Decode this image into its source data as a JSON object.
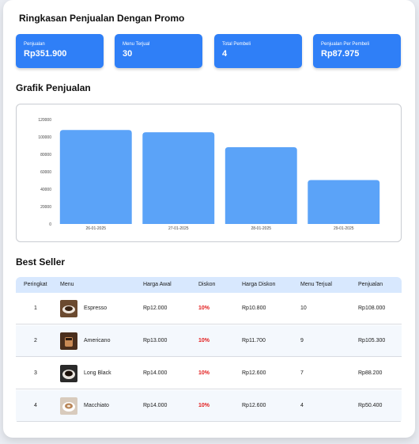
{
  "summary": {
    "title": "Ringkasan Penjualan Dengan Promo",
    "cards": [
      {
        "label": "Penjualan",
        "value": "Rp351.900"
      },
      {
        "label": "Menu Terjual",
        "value": "30"
      },
      {
        "label": "Total Pembeli",
        "value": "4"
      },
      {
        "label": "Penjualan Per Pembeli",
        "value": "Rp87.975"
      }
    ],
    "accent_color": "#2f7ff7"
  },
  "chart_section": {
    "title": "Grafik Penjualan"
  },
  "chart_data": {
    "type": "bar",
    "categories": [
      "26-01-2025",
      "27-01-2025",
      "28-01-2025",
      "29-01-2025"
    ],
    "values": [
      108000,
      105300,
      88200,
      50400
    ],
    "ylim": [
      0,
      120000
    ],
    "yticks": [
      "0",
      "20000",
      "40000",
      "60000",
      "80000",
      "100000",
      "120000"
    ],
    "bar_color": "#5ba3f8",
    "grid": false,
    "legend": "none"
  },
  "best_seller": {
    "title": "Best Seller",
    "columns": [
      "Peringkat",
      "Menu",
      "Harga Awal",
      "Diskon",
      "Harga Diskon",
      "Menu Terjual",
      "Penjualan"
    ],
    "rows": [
      {
        "rank": "1",
        "menu": "Espresso",
        "price": "Rp12.000",
        "discount": "10%",
        "discount_price": "Rp10.800",
        "sold": "10",
        "sales": "Rp108.000",
        "thumb_icon": "espresso-cup-icon"
      },
      {
        "rank": "2",
        "menu": "Americano",
        "price": "Rp13.000",
        "discount": "10%",
        "discount_price": "Rp11.700",
        "sold": "9",
        "sales": "Rp105.300",
        "thumb_icon": "americano-cup-icon"
      },
      {
        "rank": "3",
        "menu": "Long Black",
        "price": "Rp14.000",
        "discount": "10%",
        "discount_price": "Rp12.600",
        "sold": "7",
        "sales": "Rp88.200",
        "thumb_icon": "long-black-cup-icon"
      },
      {
        "rank": "4",
        "menu": "Macchiato",
        "price": "Rp14.000",
        "discount": "10%",
        "discount_price": "Rp12.600",
        "sold": "4",
        "sales": "Rp50.400",
        "thumb_icon": "macchiato-cup-icon"
      }
    ],
    "discount_color": "#e21b1b",
    "header_color": "#d8e8fe"
  }
}
